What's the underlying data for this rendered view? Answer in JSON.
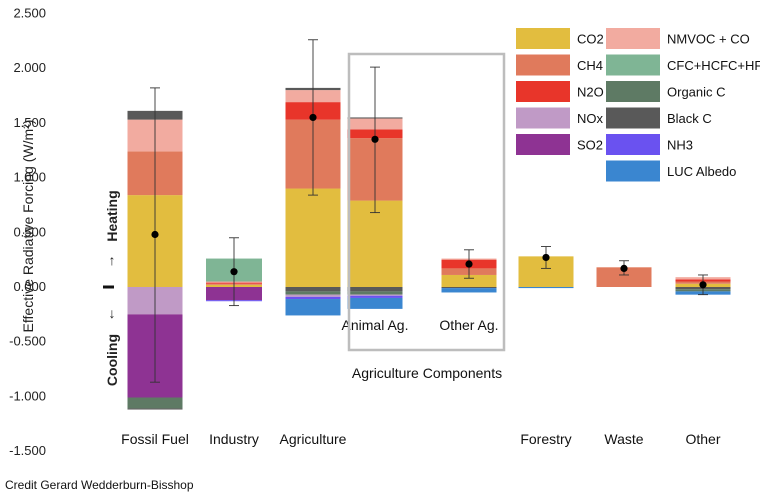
{
  "chart_data": {
    "type": "bar",
    "stacked": true,
    "ylabel": "Effective Radiative Forcing (W/m²)",
    "ylabel_sup": "2",
    "ylim": [
      -1.5,
      2.5
    ],
    "yticks": [
      "2.500",
      "2.000",
      "1.500",
      "1.000",
      "0.500",
      "0.000",
      "-0.500",
      "-1.000",
      "-1.500"
    ],
    "ytick_values": [
      2.5,
      2.0,
      1.5,
      1.0,
      0.5,
      0.0,
      -0.5,
      -1.0,
      -1.5
    ],
    "heating_label": "Heating",
    "cooling_label": "Cooling",
    "group_label": "Agriculture Components",
    "credit": "Credit Gerard Wedderburn-Bisshop",
    "legend": [
      {
        "name": "CO2",
        "color": "#e2bd3f"
      },
      {
        "name": "CH4",
        "color": "#e07a5c"
      },
      {
        "name": "N2O",
        "color": "#e8352a"
      },
      {
        "name": "NOx",
        "color": "#c09ac6"
      },
      {
        "name": "SO2",
        "color": "#8e3393"
      },
      {
        "name": "NMVOC + CO",
        "color": "#f2aba0"
      },
      {
        "name": "CFC+HCFC+HFC",
        "color": "#7fb595"
      },
      {
        "name": "Organic C",
        "color": "#5e7a64"
      },
      {
        "name": "Black C",
        "color": "#595959"
      },
      {
        "name": "NH3",
        "color": "#6a52f0"
      },
      {
        "name": "LUC Albedo",
        "color": "#3a86d0"
      }
    ],
    "categories": [
      {
        "label": "Fossil Fuel",
        "net": 0.48,
        "err_low": -0.87,
        "err_high": 1.82,
        "pos": [
          [
            "CO2",
            0.84
          ],
          [
            "CH4",
            0.4
          ],
          [
            "NMVOC + CO",
            0.29
          ],
          [
            "Black C",
            0.08
          ]
        ],
        "neg": [
          [
            "NOx",
            -0.25
          ],
          [
            "SO2",
            -0.76
          ],
          [
            "Organic C",
            -0.1
          ],
          [
            "Black C",
            -0.01
          ]
        ]
      },
      {
        "label": "Industry",
        "net": 0.14,
        "err_low": -0.17,
        "err_high": 0.45,
        "pos": [
          [
            "CO2",
            0.02
          ],
          [
            "CH4",
            0.01
          ],
          [
            "N2O",
            0.01
          ],
          [
            "NMVOC + CO",
            0.01
          ],
          [
            "CFC+HCFC+HFC",
            0.21
          ]
        ],
        "neg": [
          [
            "SO2",
            -0.12
          ],
          [
            "NH3",
            -0.01
          ]
        ]
      },
      {
        "label": "Agriculture",
        "net": 1.55,
        "err_low": 0.84,
        "err_high": 2.26,
        "pos": [
          [
            "CO2",
            0.9
          ],
          [
            "CH4",
            0.63
          ],
          [
            "N2O",
            0.16
          ],
          [
            "NMVOC + CO",
            0.11
          ],
          [
            "Black C",
            0.02
          ]
        ],
        "neg": [
          [
            "Black C",
            -0.04
          ],
          [
            "Organic C",
            -0.03
          ],
          [
            "NOx",
            -0.02
          ],
          [
            "NH3",
            -0.02
          ],
          [
            "LUC Albedo",
            -0.15
          ]
        ]
      },
      {
        "label": "Animal Ag.",
        "net": 1.35,
        "err_low": 0.68,
        "err_high": 2.01,
        "pos": [
          [
            "CO2",
            0.79
          ],
          [
            "CH4",
            0.57
          ],
          [
            "N2O",
            0.08
          ],
          [
            "NMVOC + CO",
            0.1
          ],
          [
            "Black C",
            0.01
          ]
        ],
        "neg": [
          [
            "Black C",
            -0.04
          ],
          [
            "Organic C",
            -0.03
          ],
          [
            "NOx",
            -0.01
          ],
          [
            "NH3",
            -0.02
          ],
          [
            "LUC Albedo",
            -0.1
          ]
        ]
      },
      {
        "label": "Other Ag.",
        "net": 0.21,
        "err_low": 0.08,
        "err_high": 0.34,
        "pos": [
          [
            "CO2",
            0.11
          ],
          [
            "CH4",
            0.06
          ],
          [
            "N2O",
            0.08
          ],
          [
            "NMVOC + CO",
            0.01
          ]
        ],
        "neg": [
          [
            "Black C",
            -0.01
          ],
          [
            "LUC Albedo",
            -0.04
          ]
        ]
      },
      {
        "label": "Forestry",
        "net": 0.27,
        "err_low": 0.17,
        "err_high": 0.37,
        "pos": [
          [
            "CO2",
            0.28
          ]
        ],
        "neg": [
          [
            "LUC Albedo",
            -0.01
          ]
        ]
      },
      {
        "label": "Waste",
        "net": 0.17,
        "err_low": 0.11,
        "err_high": 0.24,
        "pos": [
          [
            "CH4",
            0.18
          ]
        ],
        "neg": []
      },
      {
        "label": "Other",
        "net": 0.02,
        "err_low": -0.07,
        "err_high": 0.11,
        "pos": [
          [
            "CO2",
            0.03
          ],
          [
            "CH4",
            0.02
          ],
          [
            "N2O",
            0.02
          ],
          [
            "NMVOC + CO",
            0.02
          ]
        ],
        "neg": [
          [
            "Black C",
            -0.02
          ],
          [
            "Organic C",
            -0.02
          ],
          [
            "LUC Albedo",
            -0.03
          ]
        ]
      }
    ]
  }
}
